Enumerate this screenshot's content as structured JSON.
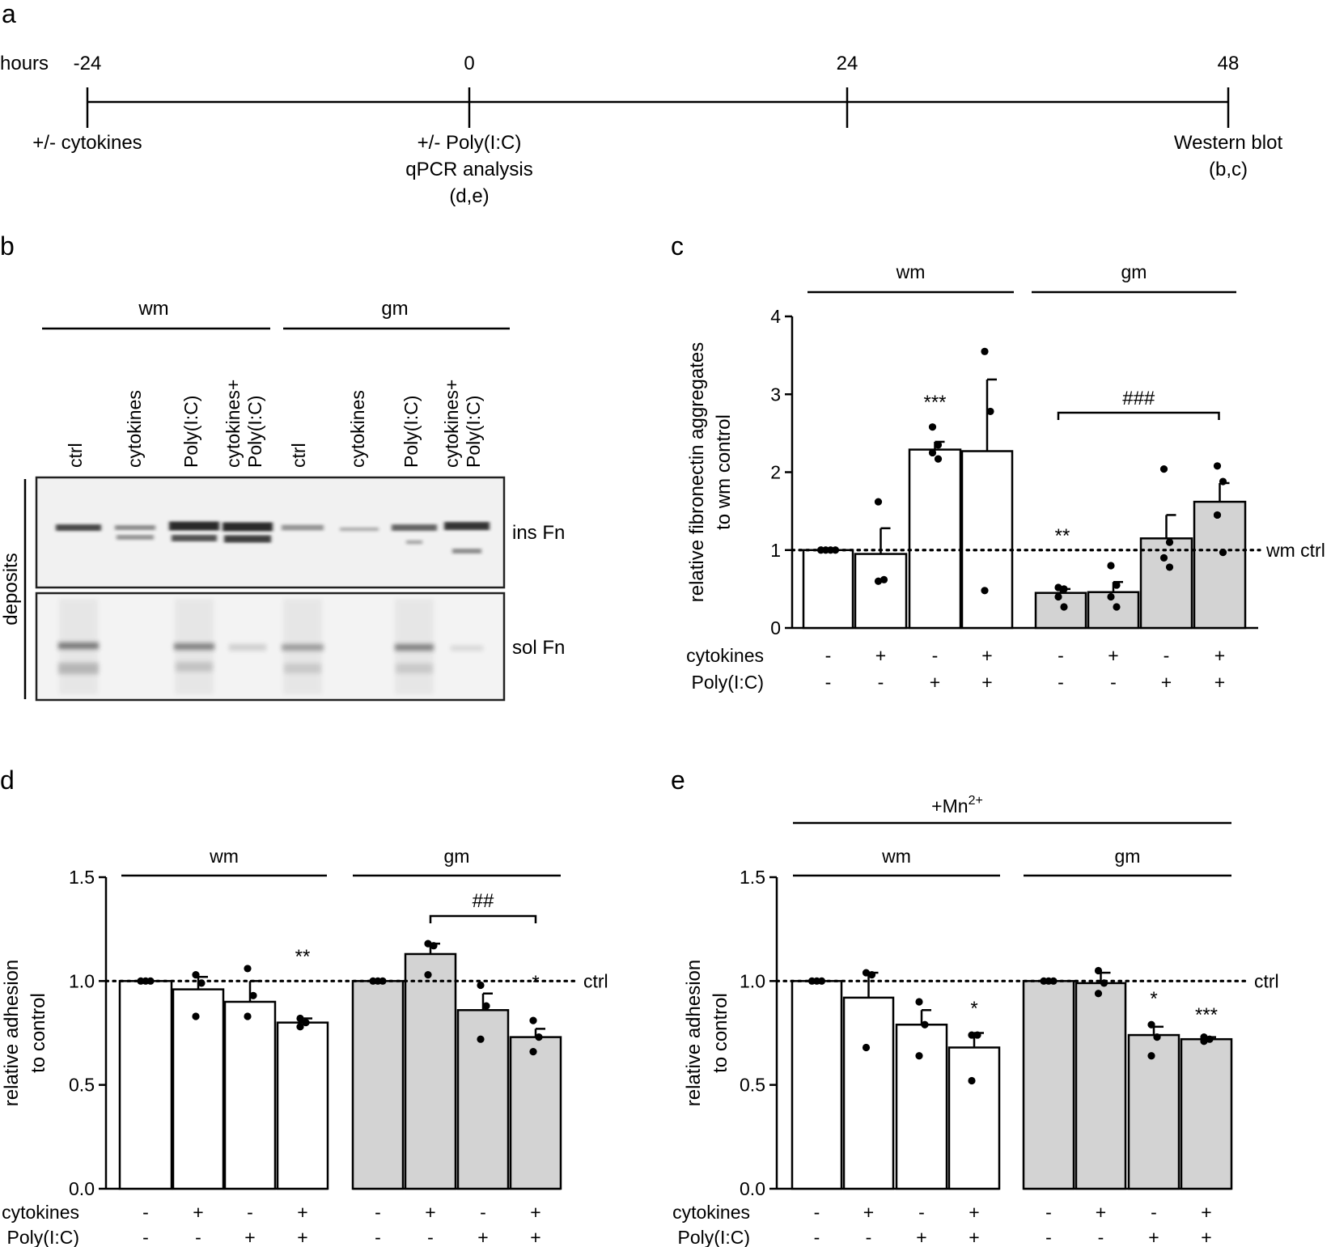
{
  "panel_labels": {
    "a": "a",
    "b": "b",
    "c": "c",
    "d": "d",
    "e": "e"
  },
  "timeline": {
    "axis_label": "hours",
    "ticks": [
      "-24",
      "0",
      "24",
      "48"
    ],
    "events": [
      {
        "lines": [
          "+/- cytokines"
        ]
      },
      {
        "lines": [
          "+/- Poly(I:C)",
          "qPCR analysis",
          "(d,e)"
        ]
      },
      {
        "lines": []
      },
      {
        "lines": [
          "Western blot",
          "(b,c)"
        ]
      }
    ]
  },
  "blot": {
    "groups": [
      "wm",
      "gm"
    ],
    "lanes": [
      "ctrl",
      "cytokines",
      "Poly(I:C)",
      "cytokines+",
      "Poly(I:C)",
      "ctrl",
      "cytokines",
      "Poly(I:C)",
      "cytokines+",
      "Poly(I:C)"
    ],
    "side_label": "deposits",
    "row_labels": [
      "ins Fn",
      "sol Fn"
    ],
    "colors": {
      "background": "#f1f1f1",
      "band": "#2a2a2a"
    }
  },
  "treatments": {
    "row_labels": [
      "cytokines",
      "Poly(I:C)"
    ],
    "cytokines": [
      "-",
      "+",
      "-",
      "+",
      "-",
      "+",
      "-",
      "+"
    ],
    "polyic": [
      "-",
      "-",
      "+",
      "+",
      "-",
      "-",
      "+",
      "+"
    ]
  },
  "chart_data": [
    {
      "id": "c",
      "type": "bar",
      "ylabel_lines": [
        "relative fibronectin aggregates",
        "to wm control"
      ],
      "ylim": [
        0,
        4
      ],
      "yticks": [
        "0",
        "1",
        "2",
        "3",
        "4"
      ],
      "groups": [
        "wm",
        "gm"
      ],
      "reference_label": "wm ctrl",
      "reference_value": 1,
      "series": [
        {
          "name": "wm",
          "color": "#ffffff",
          "values": [
            1.0,
            0.95,
            2.29,
            2.27
          ],
          "errors": [
            0,
            0.33,
            0.1,
            0.92
          ]
        },
        {
          "name": "gm",
          "color": "#d3d3d3",
          "values": [
            0.45,
            0.46,
            1.15,
            1.62
          ],
          "errors": [
            0.05,
            0.13,
            0.3,
            0.24
          ]
        }
      ],
      "points": [
        [
          [
            1,
            1,
            1,
            1
          ],
          [
            1.62,
            0.62,
            0.6
          ],
          [
            2.58,
            2.35,
            2.25,
            2.17
          ],
          [
            3.55,
            2.78,
            0.48
          ]
        ],
        [
          [
            0.52,
            0.5,
            0.4,
            0.27
          ],
          [
            0.8,
            0.55,
            0.4,
            0.27
          ],
          [
            2.04,
            1.1,
            0.9,
            0.78
          ],
          [
            2.08,
            1.88,
            1.45,
            0.97
          ]
        ]
      ],
      "annotations": [
        "***",
        "**",
        "###"
      ]
    },
    {
      "id": "d",
      "type": "bar",
      "ylabel_lines": [
        "relative adhesion",
        "to control"
      ],
      "ylim": [
        0,
        1.5
      ],
      "yticks": [
        "0.0",
        "0.5",
        "1.0",
        "1.5"
      ],
      "groups": [
        "wm",
        "gm"
      ],
      "reference_label": "ctrl",
      "reference_value": 1,
      "series": [
        {
          "name": "wm",
          "color": "#ffffff",
          "values": [
            1.0,
            0.96,
            0.9,
            0.8
          ],
          "errors": [
            0,
            0.06,
            0.1,
            0.02
          ]
        },
        {
          "name": "gm",
          "color": "#d3d3d3",
          "values": [
            1.0,
            1.13,
            0.86,
            0.73
          ],
          "errors": [
            0,
            0.05,
            0.08,
            0.04
          ]
        }
      ],
      "points": [
        [
          [
            1,
            1,
            1
          ],
          [
            1.03,
            0.99,
            0.83
          ],
          [
            1.06,
            0.93,
            0.83
          ],
          [
            0.82,
            0.8,
            0.78
          ]
        ],
        [
          [
            1,
            1,
            1
          ],
          [
            1.18,
            1.17,
            1.03
          ],
          [
            0.98,
            0.88,
            0.72
          ],
          [
            0.81,
            0.73,
            0.66
          ]
        ]
      ],
      "annotations": [
        "**",
        "*",
        "##"
      ]
    },
    {
      "id": "e",
      "type": "bar",
      "title": "+Mn",
      "title_sup": "2+",
      "ylabel_lines": [
        "relative adhesion",
        "to control"
      ],
      "ylim": [
        0,
        1.5
      ],
      "yticks": [
        "0.0",
        "0.5",
        "1.0",
        "1.5"
      ],
      "groups": [
        "wm",
        "gm"
      ],
      "reference_label": "ctrl",
      "reference_value": 1,
      "series": [
        {
          "name": "wm",
          "color": "#ffffff",
          "values": [
            1.0,
            0.92,
            0.79,
            0.68
          ],
          "errors": [
            0,
            0.12,
            0.07,
            0.07
          ]
        },
        {
          "name": "gm",
          "color": "#d3d3d3",
          "values": [
            1.0,
            0.99,
            0.74,
            0.72
          ],
          "errors": [
            0,
            0.05,
            0.04,
            0.01
          ]
        }
      ],
      "points": [
        [
          [
            1,
            1,
            1
          ],
          [
            1.04,
            1.03,
            0.68
          ],
          [
            0.9,
            0.79,
            0.64
          ],
          [
            0.74,
            0.74,
            0.52
          ]
        ],
        [
          [
            1,
            1,
            1
          ],
          [
            1.05,
            0.99,
            0.94
          ],
          [
            0.79,
            0.73,
            0.64
          ],
          [
            0.73,
            0.72,
            0.71
          ]
        ]
      ],
      "annotations": [
        "*",
        "*",
        "***"
      ]
    }
  ]
}
